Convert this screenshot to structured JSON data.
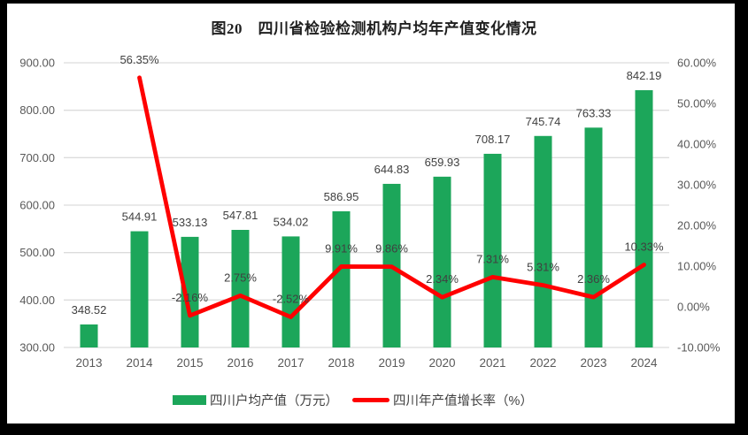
{
  "chart_data": {
    "type": "bar",
    "subtype": "combo-bar-line-dual-axis",
    "title": "图20　四川省检验检测机构户均年产值变化情况",
    "categories": [
      "2013",
      "2014",
      "2015",
      "2016",
      "2017",
      "2018",
      "2019",
      "2020",
      "2021",
      "2022",
      "2023",
      "2024"
    ],
    "series": [
      {
        "name": "四川户均产值（万元）",
        "chart_type": "bar",
        "axis": "left",
        "color": "#1CA65A",
        "values": [
          348.52,
          544.91,
          533.13,
          547.81,
          534.02,
          586.95,
          644.83,
          659.93,
          708.17,
          745.74,
          763.33,
          842.19
        ],
        "data_labels": [
          "348.52",
          "544.91",
          "533.13",
          "547.81",
          "534.02",
          "586.95",
          "644.83",
          "659.93",
          "708.17",
          "745.74",
          "763.33",
          "842.19"
        ]
      },
      {
        "name": "四川年产值增长率（%）",
        "chart_type": "line",
        "axis": "right",
        "color": "#FF0000",
        "values": [
          null,
          56.35,
          -2.16,
          2.75,
          -2.52,
          9.91,
          9.86,
          2.34,
          7.31,
          5.31,
          2.36,
          10.33
        ],
        "data_labels": [
          null,
          "56.35%",
          "-2.16%",
          "2.75%",
          "-2.52%",
          "9.91%",
          "9.86%",
          "2.34%",
          "7.31%",
          "5.31%",
          "2.36%",
          "10.33%"
        ]
      }
    ],
    "left_axis": {
      "min": 300,
      "max": 900,
      "step": 100,
      "tick_labels": [
        "900.00",
        "800.00",
        "700.00",
        "600.00",
        "500.00",
        "400.00",
        "300.00"
      ]
    },
    "right_axis": {
      "min": -10,
      "max": 60,
      "step": 10,
      "tick_labels": [
        "60.00%",
        "50.00%",
        "40.00%",
        "30.00%",
        "20.00%",
        "10.00%",
        "0.00%",
        "-10.00%"
      ]
    },
    "grid": true,
    "legend_position": "bottom",
    "colors": {
      "grid_line": "#DCDCDC",
      "axis_text": "#595959",
      "data_label_text": "#404040",
      "title_text": "#1f1f1f",
      "frame_border": "#000000",
      "plot_background": "#ffffff"
    }
  }
}
